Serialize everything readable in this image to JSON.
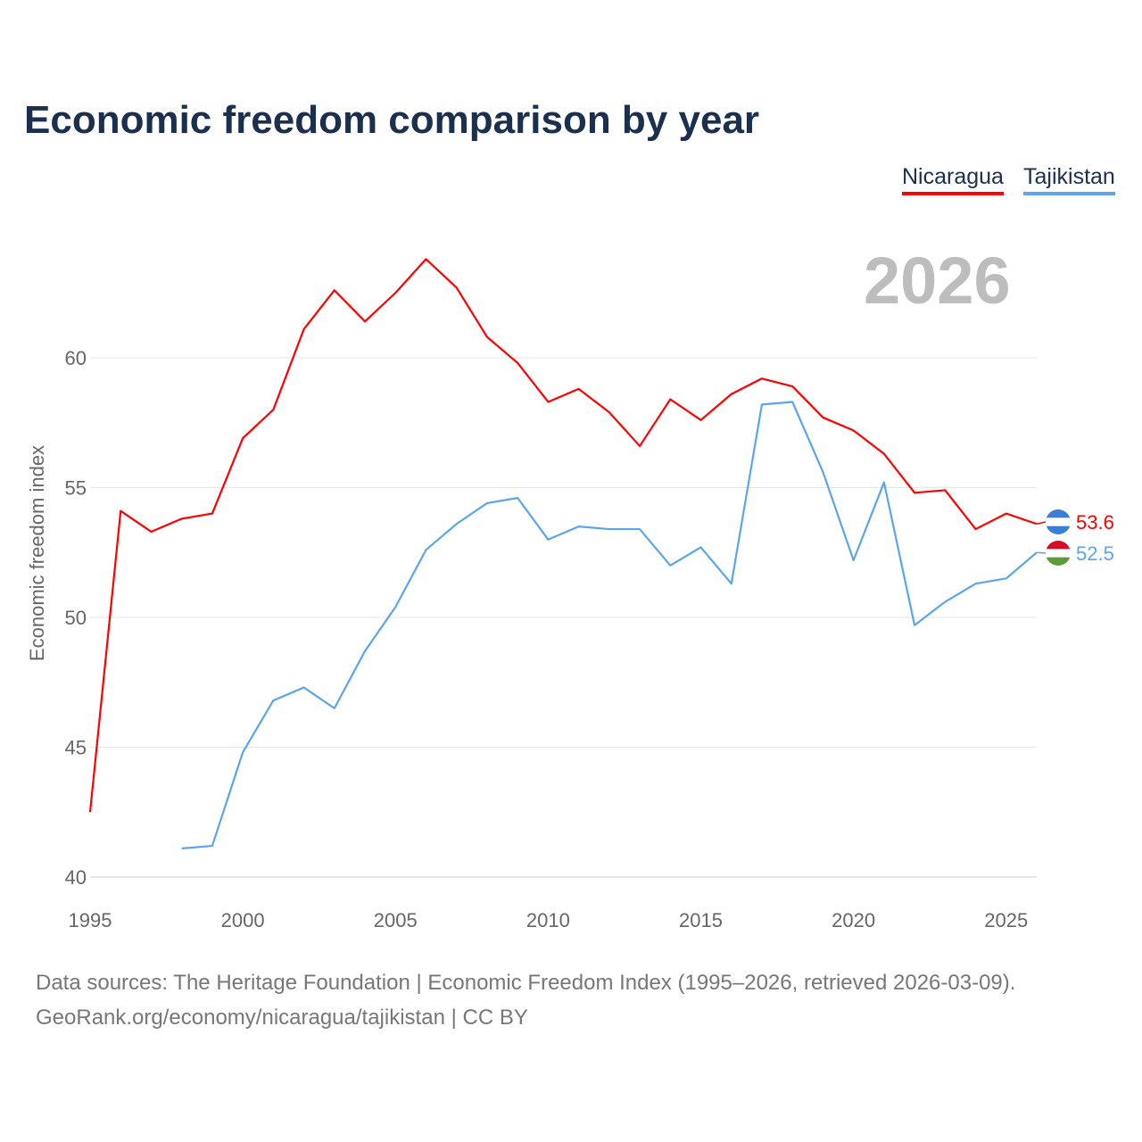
{
  "title": "Economic freedom comparison by year",
  "year_label": "2026",
  "footer": {
    "line1": "Data sources: The Heritage Foundation | Economic Freedom Index (1995–2026, retrieved 2026-03-09).",
    "line2": "GeoRank.org/economy/nicaragua/tajikistan | CC BY"
  },
  "chart_data": {
    "type": "line",
    "title": "Economic freedom comparison by year",
    "xlabel": "",
    "ylabel": "Economic freedom index",
    "xlim": [
      1995,
      2026
    ],
    "ylim": [
      40,
      64
    ],
    "xticks": [
      1995,
      2000,
      2005,
      2010,
      2015,
      2020,
      2025
    ],
    "yticks": [
      40,
      45,
      50,
      55,
      60
    ],
    "grid": true,
    "legend_placement": "top-right",
    "series": [
      {
        "name": "Nicaragua",
        "color": "#ff0000",
        "end_label": "53.6",
        "x": [
          1995,
          1996,
          1997,
          1998,
          1999,
          2000,
          2001,
          2002,
          2003,
          2004,
          2005,
          2006,
          2007,
          2008,
          2009,
          2010,
          2011,
          2012,
          2013,
          2014,
          2015,
          2016,
          2017,
          2018,
          2019,
          2020,
          2021,
          2022,
          2023,
          2024,
          2025,
          2026
        ],
        "values": [
          42.5,
          54.1,
          53.3,
          53.8,
          54.0,
          56.9,
          58.0,
          61.1,
          62.6,
          61.4,
          62.5,
          63.8,
          62.7,
          60.8,
          59.8,
          58.3,
          58.8,
          57.9,
          56.6,
          58.4,
          57.6,
          58.6,
          59.2,
          58.9,
          57.7,
          57.2,
          56.3,
          54.8,
          54.9,
          53.4,
          54.0,
          53.6
        ]
      },
      {
        "name": "Tajikistan",
        "color": "#5aa5ec",
        "end_label": "52.5",
        "x": [
          1998,
          1999,
          2000,
          2001,
          2002,
          2003,
          2004,
          2005,
          2006,
          2007,
          2008,
          2009,
          2010,
          2011,
          2012,
          2013,
          2014,
          2015,
          2016,
          2017,
          2018,
          2019,
          2020,
          2021,
          2022,
          2023,
          2024,
          2025,
          2026
        ],
        "values": [
          41.1,
          41.2,
          44.8,
          46.8,
          47.3,
          46.5,
          48.7,
          50.4,
          52.6,
          53.6,
          54.4,
          54.6,
          53.0,
          53.5,
          53.4,
          53.4,
          52.0,
          52.7,
          51.3,
          58.2,
          58.3,
          55.6,
          52.2,
          55.2,
          49.7,
          50.6,
          51.3,
          51.5,
          52.5
        ]
      }
    ]
  }
}
